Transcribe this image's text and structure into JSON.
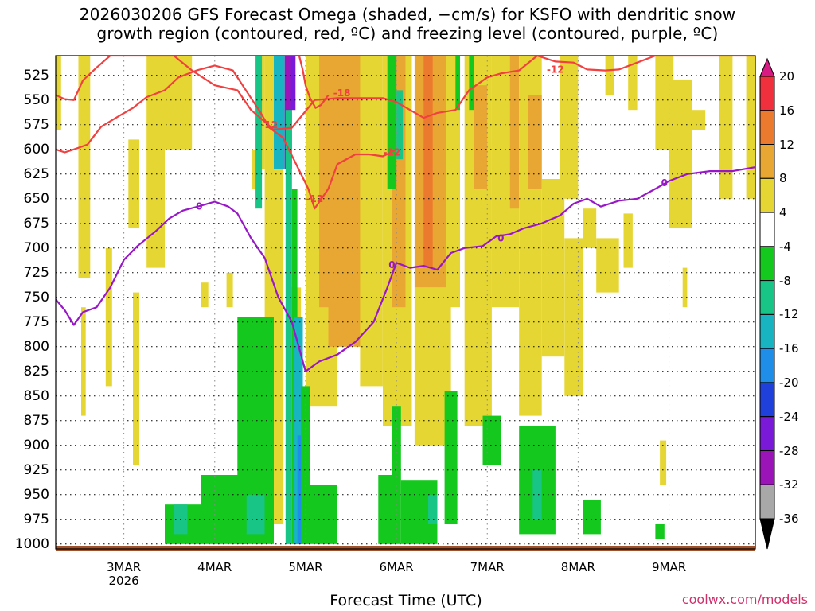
{
  "title": {
    "line1": "2026030206 GFS Forecast Omega (shaded, −cm/s) for KSFO with dendritic snow",
    "line2": "growth region (contoured, red, ºC) and freezing level (contoured, purple, ºC)"
  },
  "credit": "coolwx.com/models",
  "chart_data": {
    "type": "heatmap",
    "title": "2026030206 GFS Forecast Omega (shaded, −cm/s) for KSFO with dendritic snow growth region (contoured, red, ºC) and freezing level (contoured, purple, ºC)",
    "xlabel": "Forecast Time (UTC)",
    "ylabel": "",
    "x_range_days": [
      0,
      7.7
    ],
    "x_ticks": [
      {
        "day": 0.75,
        "label": "3MAR",
        "sub": "2026"
      },
      {
        "day": 1.75,
        "label": "4MAR"
      },
      {
        "day": 2.75,
        "label": "5MAR"
      },
      {
        "day": 3.75,
        "label": "6MAR"
      },
      {
        "day": 4.75,
        "label": "7MAR"
      },
      {
        "day": 5.75,
        "label": "8MAR"
      },
      {
        "day": 6.75,
        "label": "9MAR"
      }
    ],
    "y_ticks": [
      525,
      550,
      575,
      600,
      625,
      650,
      675,
      700,
      725,
      750,
      775,
      800,
      825,
      850,
      875,
      900,
      925,
      950,
      975,
      1000
    ],
    "y_range_hpa": [
      505,
      1005
    ],
    "colorbar": {
      "tick_labels": [
        "20",
        "16",
        "12",
        "8",
        "4",
        "-4",
        "-8",
        "-12",
        "-16",
        "-20",
        "-24",
        "-28",
        "-32",
        "-36"
      ],
      "bins": [
        {
          "lo": 16,
          "hi": 20,
          "color": "#f0303c"
        },
        {
          "lo": 12,
          "hi": 16,
          "color": "#ec7a2e"
        },
        {
          "lo": 8,
          "hi": 12,
          "color": "#e8a633"
        },
        {
          "lo": 4,
          "hi": 8,
          "color": "#e6d634"
        },
        {
          "lo": -4,
          "hi": 4,
          "color": "#ffffff"
        },
        {
          "lo": -8,
          "hi": -4,
          "color": "#14c81e"
        },
        {
          "lo": -12,
          "hi": -8,
          "color": "#18c486"
        },
        {
          "lo": -16,
          "hi": -12,
          "color": "#18b4c2"
        },
        {
          "lo": -20,
          "hi": -16,
          "color": "#1e8ee8"
        },
        {
          "lo": -24,
          "hi": -20,
          "color": "#2040dc"
        },
        {
          "lo": -28,
          "hi": -24,
          "color": "#7a1ad8"
        },
        {
          "lo": -32,
          "hi": -28,
          "color": "#9a14b8"
        },
        {
          "lo": -36,
          "hi": -32,
          "color": "#a8a8a8"
        }
      ],
      "over_color": "#d81a84",
      "under_color": "#000000"
    },
    "shading": [
      {
        "d0": 0.0,
        "d1": 0.06,
        "p0": 505,
        "p1": 580,
        "v": 5
      },
      {
        "d0": 0.25,
        "d1": 0.38,
        "p0": 505,
        "p1": 730,
        "v": 5
      },
      {
        "d0": 0.28,
        "d1": 0.33,
        "p0": 760,
        "p1": 870,
        "v": 5
      },
      {
        "d0": 0.55,
        "d1": 0.62,
        "p0": 700,
        "p1": 840,
        "v": 5
      },
      {
        "d0": 0.8,
        "d1": 0.92,
        "p0": 590,
        "p1": 680,
        "v": 5
      },
      {
        "d0": 0.85,
        "d1": 0.92,
        "p0": 745,
        "p1": 920,
        "v": 5
      },
      {
        "d0": 1.0,
        "d1": 1.2,
        "p0": 505,
        "p1": 720,
        "v": 5
      },
      {
        "d0": 1.2,
        "d1": 1.5,
        "p0": 505,
        "p1": 600,
        "v": 5
      },
      {
        "d0": 1.6,
        "d1": 1.68,
        "p0": 735,
        "p1": 760,
        "v": 5
      },
      {
        "d0": 1.88,
        "d1": 1.95,
        "p0": 725,
        "p1": 760,
        "v": 5
      },
      {
        "d0": 2.16,
        "d1": 2.26,
        "p0": 600,
        "p1": 640,
        "v": 5
      },
      {
        "d0": 2.15,
        "d1": 2.25,
        "p0": 810,
        "p1": 845,
        "v": 5
      },
      {
        "d0": 2.3,
        "d1": 2.5,
        "p0": 505,
        "p1": 980,
        "v": 5
      },
      {
        "d0": 2.25,
        "d1": 2.3,
        "p0": 505,
        "p1": 620,
        "v": 6
      },
      {
        "d0": 2.55,
        "d1": 2.7,
        "p0": 740,
        "p1": 1000,
        "v": 5
      },
      {
        "d0": 2.75,
        "d1": 3.1,
        "p0": 505,
        "p1": 860,
        "v": 6
      },
      {
        "d0": 2.9,
        "d1": 3.0,
        "p0": 505,
        "p1": 760,
        "v": 9
      },
      {
        "d0": 3.0,
        "d1": 3.35,
        "p0": 505,
        "p1": 800,
        "v": 9
      },
      {
        "d0": 3.35,
        "d1": 3.6,
        "p0": 505,
        "p1": 840,
        "v": 6
      },
      {
        "d0": 3.6,
        "d1": 3.92,
        "p0": 505,
        "p1": 880,
        "v": 5
      },
      {
        "d0": 3.7,
        "d1": 3.85,
        "p0": 505,
        "p1": 760,
        "v": 9
      },
      {
        "d0": 3.95,
        "d1": 4.3,
        "p0": 505,
        "p1": 740,
        "v": 9
      },
      {
        "d0": 4.05,
        "d1": 4.15,
        "p0": 505,
        "p1": 720,
        "v": 13
      },
      {
        "d0": 3.95,
        "d1": 4.35,
        "p0": 740,
        "p1": 900,
        "v": 5
      },
      {
        "d0": 4.3,
        "d1": 4.45,
        "p0": 505,
        "p1": 760,
        "v": 6
      },
      {
        "d0": 4.5,
        "d1": 4.8,
        "p0": 505,
        "p1": 880,
        "v": 5
      },
      {
        "d0": 4.6,
        "d1": 4.75,
        "p0": 535,
        "p1": 640,
        "v": 9
      },
      {
        "d0": 4.8,
        "d1": 5.1,
        "p0": 505,
        "p1": 760,
        "v": 5
      },
      {
        "d0": 5.0,
        "d1": 5.1,
        "p0": 505,
        "p1": 660,
        "v": 9
      },
      {
        "d0": 5.1,
        "d1": 5.35,
        "p0": 505,
        "p1": 870,
        "v": 5
      },
      {
        "d0": 5.2,
        "d1": 5.35,
        "p0": 545,
        "p1": 640,
        "v": 9
      },
      {
        "d0": 5.35,
        "d1": 5.6,
        "p0": 630,
        "p1": 810,
        "v": 5
      },
      {
        "d0": 5.55,
        "d1": 5.75,
        "p0": 505,
        "p1": 650,
        "v": 5
      },
      {
        "d0": 5.6,
        "d1": 5.8,
        "p0": 690,
        "p1": 850,
        "v": 5
      },
      {
        "d0": 5.8,
        "d1": 5.95,
        "p0": 660,
        "p1": 700,
        "v": 5
      },
      {
        "d0": 5.95,
        "d1": 6.2,
        "p0": 690,
        "p1": 745,
        "v": 5
      },
      {
        "d0": 6.05,
        "d1": 6.15,
        "p0": 505,
        "p1": 545,
        "v": 5
      },
      {
        "d0": 6.25,
        "d1": 6.35,
        "p0": 665,
        "p1": 720,
        "v": 5
      },
      {
        "d0": 6.3,
        "d1": 6.4,
        "p0": 505,
        "p1": 560,
        "v": 5
      },
      {
        "d0": 6.6,
        "d1": 6.8,
        "p0": 505,
        "p1": 600,
        "v": 5
      },
      {
        "d0": 6.75,
        "d1": 7.0,
        "p0": 530,
        "p1": 680,
        "v": 5
      },
      {
        "d0": 6.9,
        "d1": 6.95,
        "p0": 720,
        "p1": 760,
        "v": 5
      },
      {
        "d0": 7.0,
        "d1": 7.15,
        "p0": 560,
        "p1": 580,
        "v": 5
      },
      {
        "d0": 7.3,
        "d1": 7.45,
        "p0": 505,
        "p1": 650,
        "v": 5
      },
      {
        "d0": 7.6,
        "d1": 7.7,
        "p0": 505,
        "p1": 650,
        "v": 5
      },
      {
        "d0": 6.65,
        "d1": 6.72,
        "p0": 895,
        "p1": 940,
        "v": 5
      },
      {
        "d0": 2.2,
        "d1": 2.27,
        "p0": 505,
        "p1": 660,
        "v": -9
      },
      {
        "d0": 2.4,
        "d1": 2.52,
        "p0": 505,
        "p1": 620,
        "v": -14
      },
      {
        "d0": 2.52,
        "d1": 2.6,
        "p0": 505,
        "p1": 620,
        "v": -30
      },
      {
        "d0": 2.58,
        "d1": 2.64,
        "p0": 505,
        "p1": 560,
        "v": -25
      },
      {
        "d0": 2.53,
        "d1": 2.6,
        "p0": 560,
        "p1": 1000,
        "v": -9
      },
      {
        "d0": 2.6,
        "d1": 2.66,
        "p0": 640,
        "p1": 1000,
        "v": -6
      },
      {
        "d0": 2.62,
        "d1": 2.72,
        "p0": 770,
        "p1": 1000,
        "v": -13
      },
      {
        "d0": 2.66,
        "d1": 2.72,
        "p0": 890,
        "p1": 1000,
        "v": -18
      },
      {
        "d0": 3.65,
        "d1": 3.75,
        "p0": 505,
        "p1": 640,
        "v": -6
      },
      {
        "d0": 3.75,
        "d1": 3.82,
        "p0": 540,
        "p1": 610,
        "v": -9
      },
      {
        "d0": 4.4,
        "d1": 4.45,
        "p0": 505,
        "p1": 560,
        "v": -6
      },
      {
        "d0": 4.55,
        "d1": 4.6,
        "p0": 505,
        "p1": 560,
        "v": -6
      },
      {
        "d0": 1.2,
        "d1": 1.6,
        "p0": 960,
        "p1": 1000,
        "v": -6
      },
      {
        "d0": 1.6,
        "d1": 2.1,
        "p0": 930,
        "p1": 1000,
        "v": -6
      },
      {
        "d0": 2.0,
        "d1": 2.4,
        "p0": 770,
        "p1": 1000,
        "v": -6
      },
      {
        "d0": 2.1,
        "d1": 2.3,
        "p0": 950,
        "p1": 990,
        "v": -9
      },
      {
        "d0": 1.3,
        "d1": 1.45,
        "p0": 960,
        "p1": 990,
        "v": -10
      },
      {
        "d0": 2.75,
        "d1": 3.1,
        "p0": 940,
        "p1": 1000,
        "v": -6
      },
      {
        "d0": 2.7,
        "d1": 2.8,
        "p0": 840,
        "p1": 1000,
        "v": -6
      },
      {
        "d0": 3.55,
        "d1": 3.72,
        "p0": 930,
        "p1": 1000,
        "v": -6
      },
      {
        "d0": 3.7,
        "d1": 3.8,
        "p0": 860,
        "p1": 1000,
        "v": -6
      },
      {
        "d0": 3.8,
        "d1": 4.2,
        "p0": 935,
        "p1": 1000,
        "v": -6
      },
      {
        "d0": 4.1,
        "d1": 4.2,
        "p0": 950,
        "p1": 980,
        "v": -10
      },
      {
        "d0": 4.28,
        "d1": 4.42,
        "p0": 845,
        "p1": 980,
        "v": -6
      },
      {
        "d0": 4.7,
        "d1": 4.9,
        "p0": 870,
        "p1": 920,
        "v": -6
      },
      {
        "d0": 5.1,
        "d1": 5.5,
        "p0": 880,
        "p1": 990,
        "v": -6
      },
      {
        "d0": 5.25,
        "d1": 5.35,
        "p0": 925,
        "p1": 975,
        "v": -10
      },
      {
        "d0": 5.8,
        "d1": 6.0,
        "p0": 955,
        "p1": 990,
        "v": -6
      },
      {
        "d0": 6.6,
        "d1": 6.7,
        "p0": 980,
        "p1": 995,
        "v": -6
      }
    ],
    "contours": [
      {
        "name": "dgz-upper",
        "color": "#f04040",
        "labels": [
          {
            "text": "-12",
            "day": 5.5,
            "p": 519
          }
        ],
        "points": [
          [
            0,
            545
          ],
          [
            0.1,
            549
          ],
          [
            0.2,
            550
          ],
          [
            0.3,
            530
          ],
          [
            0.45,
            517
          ],
          [
            0.6,
            505
          ],
          [
            1.1,
            505
          ],
          [
            1.3,
            505
          ],
          [
            1.5,
            520
          ],
          [
            1.75,
            535
          ],
          [
            2.0,
            540
          ],
          [
            2.15,
            560
          ],
          [
            2.3,
            572
          ],
          [
            2.4,
            580
          ],
          [
            2.6,
            578
          ],
          [
            2.85,
            550
          ],
          [
            3.1,
            548
          ],
          [
            3.4,
            548
          ],
          [
            3.6,
            548
          ],
          [
            3.75,
            552
          ],
          [
            3.9,
            560
          ],
          [
            4.05,
            568
          ],
          [
            4.2,
            563
          ],
          [
            4.4,
            560
          ],
          [
            4.55,
            540
          ],
          [
            4.75,
            527
          ],
          [
            4.9,
            523
          ],
          [
            5.1,
            520
          ],
          [
            5.3,
            505
          ],
          [
            5.5,
            511
          ],
          [
            5.7,
            512
          ],
          [
            5.85,
            519
          ],
          [
            6.05,
            520
          ],
          [
            6.2,
            519
          ],
          [
            6.4,
            512
          ],
          [
            6.6,
            505
          ],
          [
            7.7,
            505
          ]
        ]
      },
      {
        "name": "dgz-lower",
        "color": "#f04040",
        "labels": [
          {
            "text": "-12",
            "day": 2.35,
            "p": 575
          },
          {
            "text": "-12",
            "day": 2.85,
            "p": 650
          },
          {
            "text": "-12",
            "day": 3.7,
            "p": 603
          }
        ],
        "points": [
          [
            0,
            600
          ],
          [
            0.1,
            603
          ],
          [
            0.2,
            600
          ],
          [
            0.35,
            595
          ],
          [
            0.5,
            577
          ],
          [
            0.7,
            566
          ],
          [
            0.85,
            558
          ],
          [
            1.0,
            547
          ],
          [
            1.2,
            540
          ],
          [
            1.35,
            527
          ],
          [
            1.55,
            520
          ],
          [
            1.75,
            515
          ],
          [
            1.95,
            520
          ],
          [
            2.15,
            548
          ],
          [
            2.25,
            562
          ],
          [
            2.35,
            578
          ],
          [
            2.5,
            588
          ],
          [
            2.62,
            610
          ],
          [
            2.78,
            640
          ],
          [
            2.85,
            660
          ],
          [
            3.0,
            640
          ],
          [
            3.1,
            615
          ],
          [
            3.3,
            605
          ],
          [
            3.45,
            605
          ],
          [
            3.6,
            607
          ],
          [
            3.75,
            600
          ]
        ]
      },
      {
        "name": "dgz-inner",
        "color": "#f04040",
        "labels": [
          {
            "text": "-18",
            "day": 3.15,
            "p": 543
          }
        ],
        "points": [
          [
            2.68,
            505
          ],
          [
            2.72,
            520
          ],
          [
            2.75,
            535
          ],
          [
            2.8,
            548
          ],
          [
            2.86,
            558
          ],
          [
            2.92,
            555
          ],
          [
            3.0,
            545
          ]
        ]
      },
      {
        "name": "freezing-level",
        "color": "#9818c8",
        "labels": [
          {
            "text": "0",
            "day": 1.58,
            "p": 658
          },
          {
            "text": "0",
            "day": 3.7,
            "p": 717
          },
          {
            "text": "0",
            "day": 4.9,
            "p": 690
          },
          {
            "text": "0",
            "day": 6.7,
            "p": 634
          }
        ],
        "points": [
          [
            0,
            752
          ],
          [
            0.1,
            763
          ],
          [
            0.2,
            778
          ],
          [
            0.3,
            765
          ],
          [
            0.45,
            760
          ],
          [
            0.6,
            740
          ],
          [
            0.75,
            712
          ],
          [
            0.9,
            698
          ],
          [
            1.1,
            683
          ],
          [
            1.25,
            670
          ],
          [
            1.4,
            662
          ],
          [
            1.6,
            657
          ],
          [
            1.75,
            653
          ],
          [
            1.9,
            658
          ],
          [
            2.0,
            665
          ],
          [
            2.15,
            690
          ],
          [
            2.3,
            710
          ],
          [
            2.45,
            750
          ],
          [
            2.6,
            775
          ],
          [
            2.75,
            825
          ],
          [
            2.9,
            815
          ],
          [
            3.1,
            808
          ],
          [
            3.3,
            795
          ],
          [
            3.5,
            775
          ],
          [
            3.65,
            740
          ],
          [
            3.75,
            715
          ],
          [
            3.9,
            720
          ],
          [
            4.05,
            718
          ],
          [
            4.2,
            722
          ],
          [
            4.35,
            705
          ],
          [
            4.5,
            700
          ],
          [
            4.7,
            698
          ],
          [
            4.85,
            688
          ],
          [
            5.0,
            686
          ],
          [
            5.15,
            680
          ],
          [
            5.35,
            675
          ],
          [
            5.55,
            667
          ],
          [
            5.7,
            655
          ],
          [
            5.85,
            650
          ],
          [
            6.0,
            658
          ],
          [
            6.2,
            652
          ],
          [
            6.4,
            650
          ],
          [
            6.6,
            640
          ],
          [
            6.75,
            632
          ],
          [
            6.95,
            625
          ],
          [
            7.2,
            622
          ],
          [
            7.45,
            622
          ],
          [
            7.7,
            618
          ]
        ]
      }
    ]
  }
}
